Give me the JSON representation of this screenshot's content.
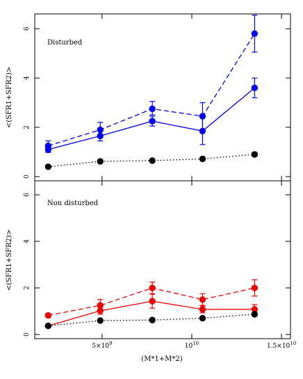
{
  "chart_data": {
    "type": "line",
    "xlabel": "(M*1+M*2)",
    "x_ticks": [
      {
        "value": 5000000000.0,
        "mantissa": "5×10",
        "exp": "9"
      },
      {
        "value": 10000000000.0,
        "mantissa": "10",
        "exp": "10"
      },
      {
        "value": 15000000000.0,
        "mantissa": "1.5×10",
        "exp": "10"
      }
    ],
    "xlim": [
      1250000000.0,
      15500000000.0
    ],
    "panels": [
      {
        "label": "Disturbed",
        "ylabel": "<(SFR1+SFR2)>",
        "ylim": [
          0,
          6.6
        ],
        "y_ticks": [
          0,
          2,
          4,
          6
        ],
        "series": [
          {
            "style": "dashed",
            "color": "#0000ee",
            "x": [
              2000000000.0,
              4900000000.0,
              7800000000.0,
              10600000000.0,
              13500000000.0
            ],
            "y": [
              1.25,
              1.9,
              2.75,
              2.45,
              5.8
            ],
            "err_low": [
              0.2,
              0.2,
              0.25,
              0.55,
              0.75
            ],
            "err_high": [
              0.2,
              0.3,
              0.3,
              0.55,
              0.75
            ]
          },
          {
            "style": "solid",
            "color": "#0000ee",
            "x": [
              2000000000.0,
              4900000000.0,
              7800000000.0,
              10600000000.0,
              13500000000.0
            ],
            "y": [
              1.1,
              1.65,
              2.25,
              1.85,
              3.6
            ],
            "err_low": [
              0.12,
              0.2,
              0.2,
              0.55,
              0.4
            ],
            "err_high": [
              0.12,
              0.2,
              0.2,
              0.55,
              0.4
            ]
          },
          {
            "style": "dotted",
            "color": "#000000",
            "x": [
              2000000000.0,
              4900000000.0,
              7800000000.0,
              10600000000.0,
              13500000000.0
            ],
            "y": [
              0.4,
              0.62,
              0.65,
              0.72,
              0.9
            ],
            "err_low": [
              0.05,
              0.05,
              0.05,
              0.05,
              0.08
            ],
            "err_high": [
              0.05,
              0.05,
              0.05,
              0.05,
              0.08
            ]
          }
        ]
      },
      {
        "label": "Non disturbed",
        "ylabel": "<(SFR1+SFR2)>",
        "ylim": [
          0,
          6.6
        ],
        "y_ticks": [
          0,
          2,
          4,
          6
        ],
        "series": [
          {
            "style": "dashed",
            "color": "#ee0000",
            "x": [
              2000000000.0,
              4900000000.0,
              7800000000.0,
              10600000000.0,
              13500000000.0
            ],
            "y": [
              0.82,
              1.25,
              2.0,
              1.5,
              2.0
            ],
            "err_low": [
              0.08,
              0.25,
              0.25,
              0.25,
              0.35
            ],
            "err_high": [
              0.08,
              0.25,
              0.25,
              0.25,
              0.35
            ]
          },
          {
            "style": "solid",
            "color": "#ee0000",
            "x": [
              2000000000.0,
              4900000000.0,
              7800000000.0,
              10600000000.0,
              13500000000.0
            ],
            "y": [
              0.37,
              1.02,
              1.43,
              1.08,
              1.08
            ],
            "err_low": [
              0.05,
              0.15,
              0.3,
              0.15,
              0.2
            ],
            "err_high": [
              0.05,
              0.15,
              0.3,
              0.15,
              0.2
            ]
          },
          {
            "style": "dotted",
            "color": "#000000",
            "x": [
              2000000000.0,
              4900000000.0,
              7800000000.0,
              10600000000.0,
              13500000000.0
            ],
            "y": [
              0.37,
              0.6,
              0.62,
              0.7,
              0.87
            ],
            "err_low": [
              0.04,
              0.05,
              0.05,
              0.05,
              0.07
            ],
            "err_high": [
              0.04,
              0.05,
              0.05,
              0.05,
              0.07
            ]
          }
        ]
      }
    ]
  }
}
